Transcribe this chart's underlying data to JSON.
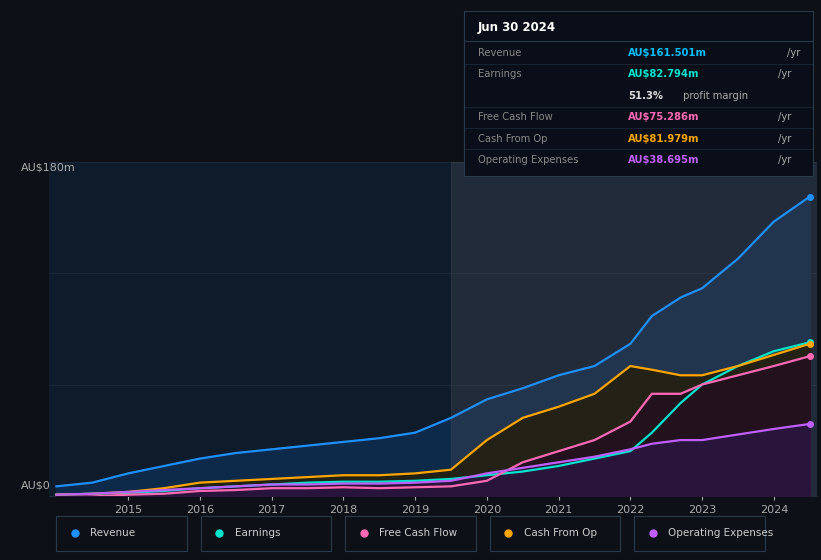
{
  "bg_color": "#0d1117",
  "plot_bg_color": "#0d1b2a",
  "title_date": "Jun 30 2024",
  "y_label_top": "AU$180m",
  "y_label_bottom": "AU$0",
  "table_rows": [
    {
      "label": "Revenue",
      "value": "AU$161.501m /yr",
      "label_color": "#888888",
      "value_color": "#00bfff"
    },
    {
      "label": "Earnings",
      "value": "AU$82.794m /yr",
      "label_color": "#888888",
      "value_color": "#00e5cc"
    },
    {
      "label": "",
      "value": "51.3% profit margin",
      "label_color": "#888888",
      "value_color": "#cccccc"
    },
    {
      "label": "Free Cash Flow",
      "value": "AU$75.286m /yr",
      "label_color": "#888888",
      "value_color": "#ff69b4"
    },
    {
      "label": "Cash From Op",
      "value": "AU$81.979m /yr",
      "label_color": "#888888",
      "value_color": "#ffa500"
    },
    {
      "label": "Operating Expenses",
      "value": "AU$38.695m /yr",
      "label_color": "#888888",
      "value_color": "#bf5fff"
    }
  ],
  "years": [
    2014.0,
    2014.5,
    2015.0,
    2015.5,
    2016.0,
    2016.5,
    2017.0,
    2017.5,
    2018.0,
    2018.5,
    2019.0,
    2019.5,
    2020.0,
    2020.5,
    2021.0,
    2021.5,
    2022.0,
    2022.3,
    2022.7,
    2023.0,
    2023.5,
    2024.0,
    2024.5
  ],
  "revenue": [
    5,
    7,
    12,
    16,
    20,
    23,
    25,
    27,
    29,
    31,
    34,
    42,
    52,
    58,
    65,
    70,
    82,
    97,
    107,
    112,
    128,
    148,
    161.5
  ],
  "earnings": [
    0.5,
    1,
    1.5,
    2.5,
    4,
    5,
    6,
    7,
    7.5,
    7.5,
    8,
    9,
    11,
    13,
    16,
    20,
    24,
    34,
    50,
    60,
    70,
    78,
    82.8
  ],
  "free_cash_flow": [
    -1,
    -0.5,
    0.5,
    1,
    2.5,
    3,
    4,
    4,
    4.5,
    4,
    4.5,
    5,
    8,
    18,
    24,
    30,
    40,
    55,
    55,
    60,
    65,
    70,
    75.3
  ],
  "cash_from_op": [
    0.5,
    1,
    2,
    4,
    7,
    8,
    9,
    10,
    11,
    11,
    12,
    14,
    30,
    42,
    48,
    55,
    70,
    68,
    65,
    65,
    70,
    76,
    82.0
  ],
  "op_expenses": [
    0.5,
    1,
    2,
    3,
    4,
    5,
    6,
    6,
    6.5,
    6.5,
    7,
    8,
    12,
    15,
    18,
    21,
    25,
    28,
    30,
    30,
    33,
    36,
    38.7
  ],
  "revenue_color": "#1e90ff",
  "earnings_color": "#00e5cc",
  "fcf_color": "#ff69b4",
  "cop_color": "#ffa500",
  "opex_color": "#bf5fff",
  "shade_start": 2019.5,
  "ylim": [
    0,
    180
  ],
  "xticks": [
    2015,
    2016,
    2017,
    2018,
    2019,
    2020,
    2021,
    2022,
    2023,
    2024
  ],
  "legend_items": [
    {
      "label": "Revenue",
      "color": "#1e90ff"
    },
    {
      "label": "Earnings",
      "color": "#00e5cc"
    },
    {
      "label": "Free Cash Flow",
      "color": "#ff69b4"
    },
    {
      "label": "Cash From Op",
      "color": "#ffa500"
    },
    {
      "label": "Operating Expenses",
      "color": "#bf5fff"
    }
  ]
}
